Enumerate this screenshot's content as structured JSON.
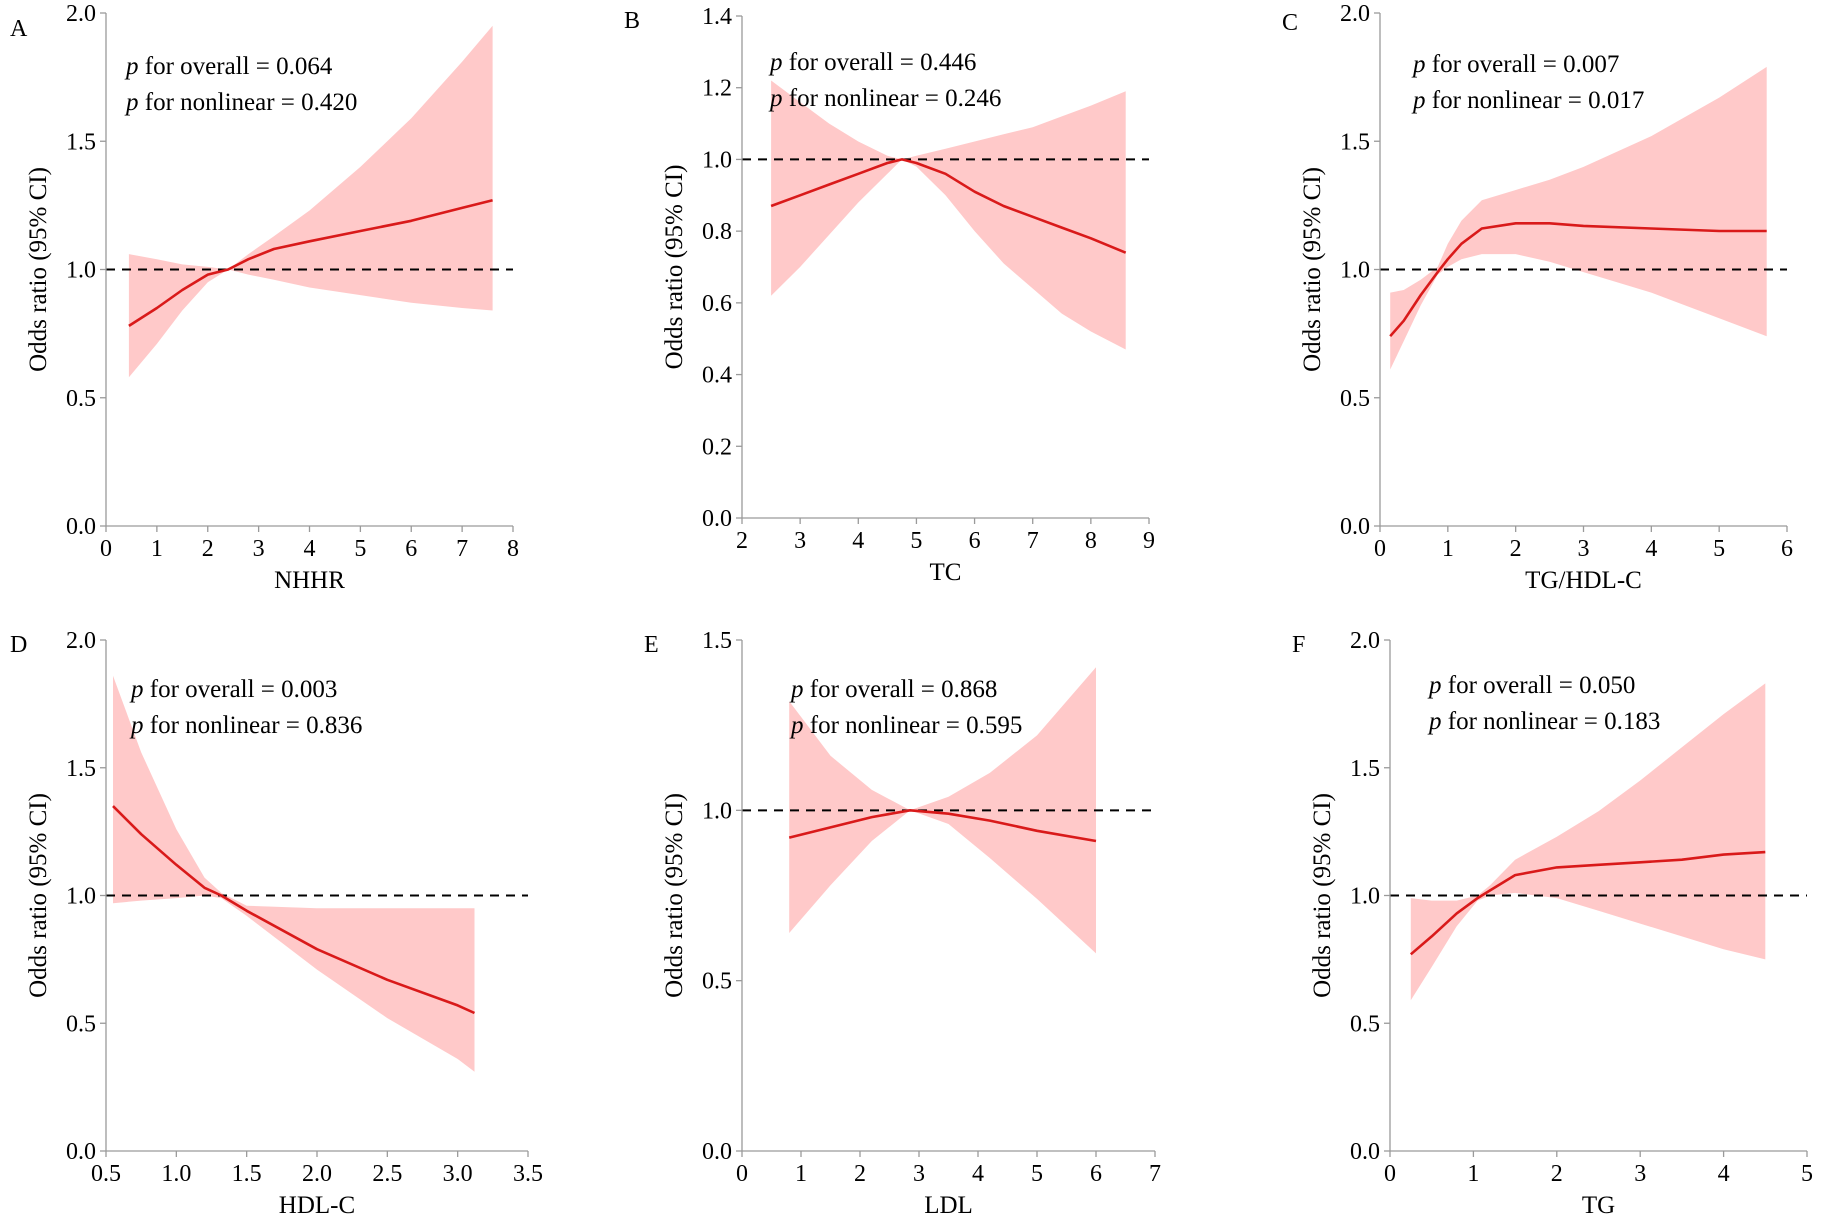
{
  "figure": {
    "colors": {
      "ci_band": "#ffc9c9",
      "curve": "#d91a1a",
      "reference_line": "#000000",
      "axis": "#9a9a9a"
    }
  },
  "chart_data": [
    {
      "panel": "A",
      "type": "line",
      "xlabel": "NHHR",
      "ylabel": "Odds ratio (95% CI)",
      "xlim": [
        0,
        8
      ],
      "ylim": [
        0,
        2.0
      ],
      "xticks": [
        0,
        1,
        2,
        3,
        4,
        5,
        6,
        7,
        8
      ],
      "xtick_labels": [
        "0",
        "1",
        "2",
        "3",
        "4",
        "5",
        "6",
        "7",
        "8"
      ],
      "yticks": [
        0,
        0.5,
        1.0,
        1.5,
        2.0
      ],
      "ytick_labels": [
        "0.0",
        "0.5",
        "1.0",
        "1.5",
        "2.0"
      ],
      "reference_line": 1.0,
      "annotations": [
        {
          "p": "p",
          "text": " for overall = 0.064"
        },
        {
          "p": "p",
          "text": " for nonlinear = 0.420"
        }
      ],
      "x": [
        0.45,
        1.0,
        1.5,
        2.0,
        2.4,
        2.8,
        3.3,
        4.0,
        5.0,
        6.0,
        7.0,
        7.6
      ],
      "or": [
        0.78,
        0.85,
        0.92,
        0.98,
        1.0,
        1.04,
        1.08,
        1.11,
        1.15,
        1.19,
        1.24,
        1.27
      ],
      "lower": [
        0.58,
        0.71,
        0.84,
        0.95,
        1.0,
        0.98,
        0.96,
        0.93,
        0.9,
        0.87,
        0.85,
        0.84
      ],
      "upper": [
        1.06,
        1.04,
        1.02,
        1.01,
        1.0,
        1.06,
        1.13,
        1.23,
        1.4,
        1.59,
        1.81,
        1.95
      ]
    },
    {
      "panel": "B",
      "type": "line",
      "xlabel": "TC",
      "ylabel": "Odds ratio (95% CI)",
      "xlim": [
        2,
        9
      ],
      "ylim": [
        0,
        1.4
      ],
      "xticks": [
        2,
        3,
        4,
        5,
        6,
        7,
        8,
        9
      ],
      "xtick_labels": [
        "2",
        "3",
        "4",
        "5",
        "6",
        "7",
        "8",
        "9"
      ],
      "yticks": [
        0,
        0.2,
        0.4,
        0.6,
        0.8,
        1.0,
        1.2,
        1.4
      ],
      "ytick_labels": [
        "0.0",
        "0.2",
        "0.4",
        "0.6",
        "0.8",
        "1.0",
        "1.2",
        "1.4"
      ],
      "reference_line": 1.0,
      "annotations": [
        {
          "p": "p",
          "text": " for overall = 0.446"
        },
        {
          "p": "p",
          "text": " for nonlinear = 0.246"
        }
      ],
      "x": [
        2.5,
        3.0,
        3.5,
        4.0,
        4.5,
        4.75,
        5.0,
        5.5,
        6.0,
        6.5,
        7.0,
        7.5,
        8.0,
        8.6
      ],
      "or": [
        0.87,
        0.9,
        0.93,
        0.96,
        0.99,
        1.0,
        0.99,
        0.96,
        0.91,
        0.87,
        0.84,
        0.81,
        0.78,
        0.74
      ],
      "lower": [
        0.62,
        0.7,
        0.79,
        0.88,
        0.96,
        1.0,
        0.98,
        0.9,
        0.8,
        0.71,
        0.64,
        0.57,
        0.52,
        0.47
      ],
      "upper": [
        1.22,
        1.16,
        1.1,
        1.05,
        1.01,
        1.0,
        1.01,
        1.03,
        1.05,
        1.07,
        1.09,
        1.12,
        1.15,
        1.19
      ]
    },
    {
      "panel": "C",
      "type": "line",
      "xlabel": "TG/HDL-C",
      "ylabel": "Odds ratio (95% CI)",
      "xlim": [
        0,
        6
      ],
      "ylim": [
        0,
        2.0
      ],
      "xticks": [
        0,
        1,
        2,
        3,
        4,
        5,
        6
      ],
      "xtick_labels": [
        "0",
        "1",
        "2",
        "3",
        "4",
        "5",
        "6"
      ],
      "yticks": [
        0,
        0.5,
        1.0,
        1.5,
        2.0
      ],
      "ytick_labels": [
        "0.0",
        "0.5",
        "1.0",
        "1.5",
        "2.0"
      ],
      "reference_line": 1.0,
      "annotations": [
        {
          "p": "p",
          "text": " for overall = 0.007"
        },
        {
          "p": "p",
          "text": " for nonlinear = 0.017"
        }
      ],
      "x": [
        0.15,
        0.35,
        0.6,
        0.85,
        1.0,
        1.2,
        1.5,
        2.0,
        2.5,
        3.0,
        4.0,
        5.0,
        5.7
      ],
      "or": [
        0.74,
        0.8,
        0.9,
        0.99,
        1.04,
        1.1,
        1.16,
        1.18,
        1.18,
        1.17,
        1.16,
        1.15,
        1.15
      ],
      "lower": [
        0.61,
        0.72,
        0.86,
        0.98,
        1.01,
        1.04,
        1.06,
        1.06,
        1.03,
        0.99,
        0.91,
        0.81,
        0.74
      ],
      "upper": [
        0.91,
        0.92,
        0.96,
        1.01,
        1.1,
        1.19,
        1.27,
        1.31,
        1.35,
        1.4,
        1.52,
        1.67,
        1.79
      ]
    },
    {
      "panel": "D",
      "type": "line",
      "xlabel": "HDL-C",
      "ylabel": "Odds ratio (95% CI)",
      "xlim": [
        0.5,
        3.5
      ],
      "ylim": [
        0,
        2.0
      ],
      "xticks": [
        0.5,
        1.0,
        1.5,
        2.0,
        2.5,
        3.0,
        3.5
      ],
      "xtick_labels": [
        "0.5",
        "1.0",
        "1.5",
        "2.0",
        "2.5",
        "3.0",
        "3.5"
      ],
      "yticks": [
        0,
        0.5,
        1.0,
        1.5,
        2.0
      ],
      "ytick_labels": [
        "0.0",
        "0.5",
        "1.0",
        "1.5",
        "2.0"
      ],
      "reference_line": 1.0,
      "annotations": [
        {
          "p": "p",
          "text": " for overall = 0.003"
        },
        {
          "p": "p",
          "text": " for nonlinear = 0.836"
        }
      ],
      "x": [
        0.55,
        0.75,
        1.0,
        1.2,
        1.32,
        1.5,
        2.0,
        2.5,
        3.0,
        3.12
      ],
      "or": [
        1.35,
        1.24,
        1.12,
        1.03,
        1.0,
        0.94,
        0.79,
        0.67,
        0.57,
        0.54
      ],
      "lower": [
        0.97,
        0.98,
        0.99,
        1.0,
        0.99,
        0.92,
        0.71,
        0.52,
        0.36,
        0.31
      ],
      "upper": [
        1.86,
        1.56,
        1.26,
        1.07,
        1.01,
        0.96,
        0.95,
        0.95,
        0.95,
        0.95
      ]
    },
    {
      "panel": "E",
      "type": "line",
      "xlabel": "LDL",
      "ylabel": "Odds ratio (95% CI)",
      "xlim": [
        0,
        7
      ],
      "ylim": [
        0,
        1.5
      ],
      "xticks": [
        0,
        1,
        2,
        3,
        4,
        5,
        6,
        7
      ],
      "xtick_labels": [
        "0",
        "1",
        "2",
        "3",
        "4",
        "5",
        "6",
        "7"
      ],
      "yticks": [
        0,
        0.5,
        1.0,
        1.5
      ],
      "ytick_labels": [
        "0.0",
        "0.5",
        "1.0",
        "1.5"
      ],
      "reference_line": 1.0,
      "annotations": [
        {
          "p": "p",
          "text": " for overall = 0.868"
        },
        {
          "p": "p",
          "text": " for nonlinear = 0.595"
        }
      ],
      "x": [
        0.8,
        1.5,
        2.2,
        2.85,
        3.5,
        4.2,
        5.0,
        6.0
      ],
      "or": [
        0.92,
        0.95,
        0.98,
        1.0,
        0.99,
        0.97,
        0.94,
        0.91
      ],
      "lower": [
        0.64,
        0.78,
        0.91,
        1.0,
        0.96,
        0.86,
        0.74,
        0.58
      ],
      "upper": [
        1.32,
        1.16,
        1.06,
        1.0,
        1.04,
        1.11,
        1.22,
        1.42
      ]
    },
    {
      "panel": "F",
      "type": "line",
      "xlabel": "TG",
      "ylabel": "Odds ratio (95% CI)",
      "xlim": [
        0,
        5
      ],
      "ylim": [
        0,
        2.0
      ],
      "xticks": [
        0,
        1,
        2,
        3,
        4,
        5
      ],
      "xtick_labels": [
        "0",
        "1",
        "2",
        "3",
        "4",
        "5"
      ],
      "yticks": [
        0,
        0.5,
        1.0,
        1.5,
        2.0
      ],
      "ytick_labels": [
        "0.0",
        "0.5",
        "1.0",
        "1.5",
        "2.0"
      ],
      "reference_line": 1.0,
      "annotations": [
        {
          "p": "p",
          "text": " for overall = 0.050"
        },
        {
          "p": "p",
          "text": " for nonlinear = 0.183"
        }
      ],
      "x": [
        0.25,
        0.5,
        0.8,
        1.05,
        1.2,
        1.5,
        2.0,
        2.5,
        3.0,
        3.5,
        4.0,
        4.5
      ],
      "or": [
        0.77,
        0.84,
        0.93,
        0.99,
        1.02,
        1.08,
        1.11,
        1.12,
        1.13,
        1.14,
        1.16,
        1.17
      ],
      "lower": [
        0.59,
        0.72,
        0.88,
        0.98,
        1.0,
        1.01,
        0.99,
        0.94,
        0.89,
        0.84,
        0.79,
        0.75
      ],
      "upper": [
        0.99,
        0.98,
        0.98,
        1.0,
        1.04,
        1.14,
        1.23,
        1.33,
        1.45,
        1.58,
        1.71,
        1.83
      ]
    }
  ]
}
